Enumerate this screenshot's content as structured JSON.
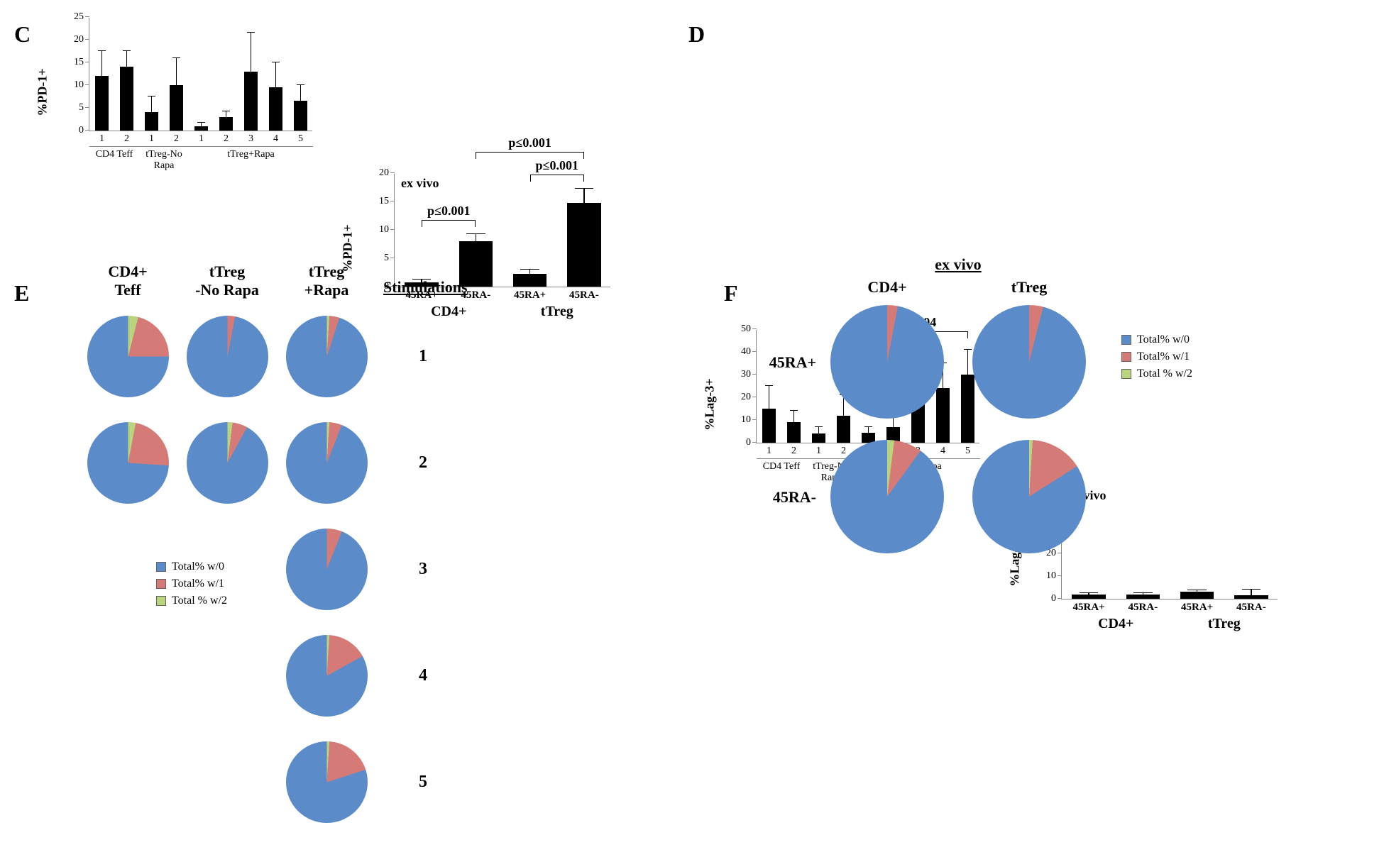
{
  "colors": {
    "bar": "#000000",
    "axis": "#888888",
    "pie_w0": "#5b8cc9",
    "pie_w1": "#d67a78",
    "pie_w2": "#b9d37e",
    "bg": "#ffffff"
  },
  "panelC": {
    "label": "C",
    "chart1": {
      "ylabel": "%PD-1+",
      "ylim": [
        0,
        25
      ],
      "ytick_step": 5,
      "bars": [
        {
          "x": "1",
          "v": 12,
          "err": 5.5
        },
        {
          "x": "2",
          "v": 14,
          "err": 3.5
        },
        {
          "x": "1",
          "v": 4,
          "err": 3.5
        },
        {
          "x": "2",
          "v": 10,
          "err": 6
        },
        {
          "x": "1",
          "v": 1,
          "err": 0.7
        },
        {
          "x": "2",
          "v": 3,
          "err": 1.2
        },
        {
          "x": "3",
          "v": 13,
          "err": 8.5
        },
        {
          "x": "4",
          "v": 9.5,
          "err": 5.5
        },
        {
          "x": "5",
          "v": 6.5,
          "err": 3.5
        }
      ],
      "groups": [
        {
          "label": "CD4 Teff",
          "from": 0,
          "to": 1
        },
        {
          "label": "tTreg-No\nRapa",
          "from": 2,
          "to": 3
        },
        {
          "label": "tTreg+Rapa",
          "from": 4,
          "to": 8
        }
      ]
    },
    "chart2": {
      "ylabel": "%PD-1+",
      "corner": "ex vivo",
      "ylim": [
        0,
        20
      ],
      "ytick_step": 5,
      "bars": [
        {
          "x": "45RA+",
          "v": 0.7,
          "err": 0.5
        },
        {
          "x": "45RA-",
          "v": 8,
          "err": 1.3
        },
        {
          "x": "45RA+",
          "v": 2.2,
          "err": 0.8
        },
        {
          "x": "45RA-",
          "v": 14.8,
          "err": 2.5
        }
      ],
      "groups": [
        {
          "label": "CD4+",
          "from": 0,
          "to": 1
        },
        {
          "label": "tTreg",
          "from": 2,
          "to": 3
        }
      ],
      "sig": [
        {
          "label": "p≤0.001",
          "from": 0,
          "to": 1,
          "top_y": 10.5,
          "dir": "up"
        },
        {
          "label": "p≤0.001",
          "from": 2,
          "to": 3,
          "top_y": 18.5,
          "dir": "up"
        },
        {
          "label": "p≤0.001",
          "from": 1,
          "to": 3,
          "top_y": 22.5,
          "dir": "up",
          "outside": true
        }
      ]
    }
  },
  "panelD": {
    "label": "D",
    "chart1": {
      "ylabel": "%Lag-3+",
      "ylim": [
        0,
        50
      ],
      "ytick_step": 10,
      "bars": [
        {
          "x": "1",
          "v": 15,
          "err": 10
        },
        {
          "x": "2",
          "v": 9,
          "err": 5
        },
        {
          "x": "1",
          "v": 4,
          "err": 3
        },
        {
          "x": "2",
          "v": 12,
          "err": 9
        },
        {
          "x": "1",
          "v": 4.5,
          "err": 2.5
        },
        {
          "x": "2",
          "v": 7,
          "err": 6
        },
        {
          "x": "3",
          "v": 18,
          "err": 10
        },
        {
          "x": "4",
          "v": 24,
          "err": 11
        },
        {
          "x": "5",
          "v": 30,
          "err": 11
        }
      ],
      "groups": [
        {
          "label": "CD4 Teff",
          "from": 0,
          "to": 1
        },
        {
          "label": "tTreg-No\nRapa",
          "from": 2,
          "to": 3
        },
        {
          "label": "tTreg+Rapa",
          "from": 4,
          "to": 8
        }
      ],
      "sig": [
        {
          "label": "p≤0.04",
          "from": 4,
          "to": 8,
          "top_y": 46,
          "dir": "up"
        }
      ]
    },
    "chart2": {
      "ylabel": "%Lag-3+",
      "corner": "ex vivo",
      "ylim": [
        0,
        50
      ],
      "ytick_step": 10,
      "bars": [
        {
          "x": "45RA+",
          "v": 2,
          "err": 0.5
        },
        {
          "x": "45RA-",
          "v": 2,
          "err": 0.5
        },
        {
          "x": "45RA+",
          "v": 3,
          "err": 0.8
        },
        {
          "x": "45RA-",
          "v": 1.5,
          "err": 2.5
        }
      ],
      "groups": [
        {
          "label": "CD4+",
          "from": 0,
          "to": 1
        },
        {
          "label": "tTreg",
          "from": 2,
          "to": 3
        }
      ]
    }
  },
  "panelE": {
    "label": "E",
    "col_headers": [
      "CD4+\nTeff",
      "tTreg\n-No Rapa",
      "tTreg\n+Rapa"
    ],
    "stim_header": "Stimulations",
    "stim_labels": [
      "1",
      "2",
      "3",
      "4",
      "5"
    ],
    "pies": {
      "cd4teff": [
        {
          "w0": 75,
          "w1": 21,
          "w2": 4
        },
        {
          "w0": 74,
          "w1": 23,
          "w2": 3
        }
      ],
      "tregNoRapa": [
        {
          "w0": 97,
          "w1": 3,
          "w2": 0
        },
        {
          "w0": 92,
          "w1": 6,
          "w2": 2
        }
      ],
      "tregRapa": [
        {
          "w0": 95,
          "w1": 4,
          "w2": 1
        },
        {
          "w0": 94,
          "w1": 5,
          "w2": 1
        },
        {
          "w0": 94,
          "w1": 6,
          "w2": 0
        },
        {
          "w0": 83,
          "w1": 16,
          "w2": 1
        },
        {
          "w0": 80,
          "w1": 19,
          "w2": 1
        }
      ]
    },
    "legend": [
      {
        "color": "#5b8cc9",
        "label": "Total% w/0"
      },
      {
        "color": "#d67a78",
        "label": "Total% w/1"
      },
      {
        "color": "#b9d37e",
        "label": "Total % w/2"
      }
    ]
  },
  "panelF": {
    "label": "F",
    "title": "ex vivo",
    "col_headers": [
      "CD4+",
      "tTreg"
    ],
    "row_headers": [
      "45RA+",
      "45RA-"
    ],
    "pies": [
      [
        {
          "w0": 97,
          "w1": 3,
          "w2": 0
        },
        {
          "w0": 96,
          "w1": 4,
          "w2": 0
        }
      ],
      [
        {
          "w0": 90,
          "w1": 8,
          "w2": 2
        },
        {
          "w0": 84,
          "w1": 15,
          "w2": 1
        }
      ]
    ],
    "legend": [
      {
        "color": "#5b8cc9",
        "label": "Total% w/0"
      },
      {
        "color": "#d67a78",
        "label": "Total% w/1"
      },
      {
        "color": "#b9d37e",
        "label": "Total % w/2"
      }
    ]
  }
}
